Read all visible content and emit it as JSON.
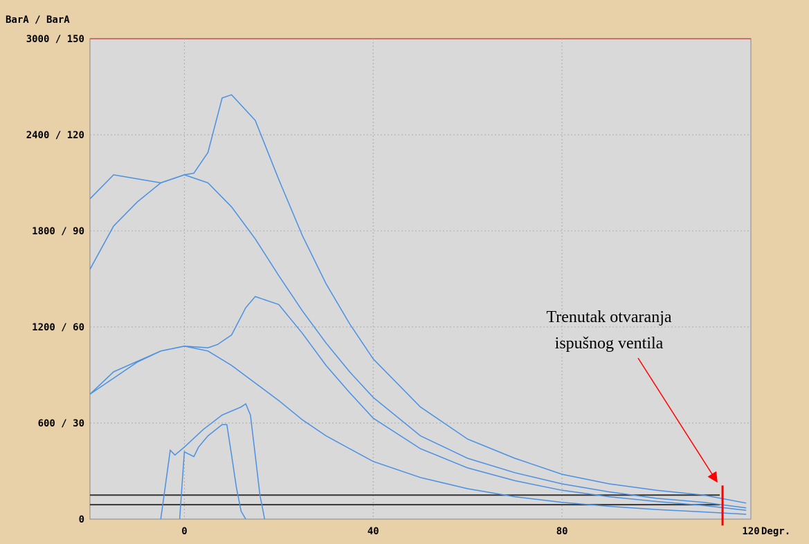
{
  "chart_data": {
    "type": "line",
    "y_unit_label": "BarA  / BarA",
    "x_unit_label": "Degr.",
    "xlim": [
      -20,
      120
    ],
    "ylim": [
      0,
      3000
    ],
    "y_secondary_lim": [
      0,
      150
    ],
    "x_ticks": [
      {
        "value": 0,
        "label": "0"
      },
      {
        "value": 40,
        "label": "40"
      },
      {
        "value": 80,
        "label": "80"
      },
      {
        "value": 120,
        "label": "120"
      }
    ],
    "y_ticks": [
      {
        "value": 0,
        "label": "0"
      },
      {
        "value": 600,
        "label": "600 / 30"
      },
      {
        "value": 1200,
        "label": "1200 / 60"
      },
      {
        "value": 1800,
        "label": "1800 / 90"
      },
      {
        "value": 2400,
        "label": "2400 / 120"
      },
      {
        "value": 3000,
        "label": "3000 / 150"
      }
    ],
    "grid": true,
    "series": [
      {
        "color": "#4a90e2",
        "points": [
          [
            -20,
            1560
          ],
          [
            -15,
            1830
          ],
          [
            -10,
            1980
          ],
          [
            -5,
            2100
          ],
          [
            0,
            2150
          ],
          [
            2,
            2160
          ],
          [
            5,
            2290
          ],
          [
            8,
            2630
          ],
          [
            10,
            2650
          ],
          [
            15,
            2490
          ],
          [
            20,
            2120
          ],
          [
            25,
            1770
          ],
          [
            30,
            1470
          ],
          [
            35,
            1220
          ],
          [
            40,
            1000
          ],
          [
            50,
            700
          ],
          [
            60,
            500
          ],
          [
            70,
            380
          ],
          [
            80,
            280
          ],
          [
            90,
            220
          ],
          [
            100,
            180
          ],
          [
            110,
            150
          ],
          [
            119,
            100
          ]
        ]
      },
      {
        "color": "#4a90e2",
        "points": [
          [
            -20,
            2000
          ],
          [
            -15,
            2150
          ],
          [
            -5,
            2100
          ],
          [
            0,
            2150
          ],
          [
            5,
            2100
          ],
          [
            10,
            1950
          ],
          [
            15,
            1750
          ],
          [
            20,
            1520
          ],
          [
            25,
            1300
          ],
          [
            30,
            1100
          ],
          [
            35,
            920
          ],
          [
            40,
            760
          ],
          [
            50,
            520
          ],
          [
            60,
            380
          ],
          [
            70,
            290
          ],
          [
            80,
            220
          ],
          [
            90,
            170
          ],
          [
            100,
            130
          ],
          [
            110,
            105
          ],
          [
            119,
            70
          ]
        ]
      },
      {
        "color": "#4a90e2",
        "points": [
          [
            -20,
            780
          ],
          [
            -15,
            880
          ],
          [
            -10,
            980
          ],
          [
            -5,
            1050
          ],
          [
            0,
            1080
          ],
          [
            5,
            1070
          ],
          [
            7,
            1090
          ],
          [
            10,
            1150
          ],
          [
            13,
            1320
          ],
          [
            15,
            1390
          ],
          [
            20,
            1340
          ],
          [
            25,
            1160
          ],
          [
            30,
            960
          ],
          [
            35,
            790
          ],
          [
            40,
            630
          ],
          [
            50,
            440
          ],
          [
            60,
            320
          ],
          [
            70,
            240
          ],
          [
            80,
            180
          ],
          [
            90,
            140
          ],
          [
            100,
            110
          ],
          [
            110,
            85
          ],
          [
            119,
            55
          ]
        ]
      },
      {
        "color": "#4a90e2",
        "points": [
          [
            -20,
            780
          ],
          [
            -15,
            920
          ],
          [
            -5,
            1050
          ],
          [
            0,
            1080
          ],
          [
            5,
            1050
          ],
          [
            10,
            960
          ],
          [
            15,
            850
          ],
          [
            20,
            740
          ],
          [
            25,
            620
          ],
          [
            30,
            520
          ],
          [
            35,
            440
          ],
          [
            40,
            360
          ],
          [
            50,
            260
          ],
          [
            60,
            190
          ],
          [
            70,
            140
          ],
          [
            80,
            105
          ],
          [
            90,
            80
          ],
          [
            100,
            60
          ],
          [
            110,
            45
          ],
          [
            119,
            30
          ]
        ]
      },
      {
        "color": "#4a90e2",
        "points": [
          [
            -5,
            0
          ],
          [
            -3,
            430
          ],
          [
            -2,
            400
          ],
          [
            0,
            450
          ],
          [
            4,
            560
          ],
          [
            8,
            650
          ],
          [
            12,
            700
          ],
          [
            13,
            720
          ],
          [
            14,
            650
          ],
          [
            15,
            400
          ],
          [
            16,
            150
          ],
          [
            17,
            0
          ]
        ]
      },
      {
        "color": "#4a90e2",
        "points": [
          [
            -1,
            0
          ],
          [
            0,
            420
          ],
          [
            2,
            390
          ],
          [
            3,
            450
          ],
          [
            5,
            520
          ],
          [
            8,
            590
          ],
          [
            9,
            590
          ],
          [
            10,
            400
          ],
          [
            11,
            200
          ],
          [
            12,
            50
          ],
          [
            13,
            0
          ]
        ]
      }
    ],
    "reference_lines": [
      {
        "color": "#333333",
        "y": 150
      },
      {
        "color": "#333333",
        "y": 90
      }
    ],
    "marker": {
      "x": 114,
      "y_from": -40,
      "y_to": 210,
      "color": "#ff0000"
    },
    "annotation": {
      "lines": [
        "Trenutak otvaranja",
        "ispušnog ventila"
      ],
      "arrow_to": [
        113,
        230
      ]
    }
  }
}
